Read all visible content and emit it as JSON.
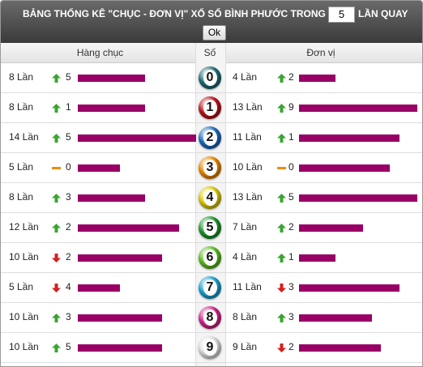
{
  "header": {
    "title": "BẢNG THỐNG KÊ \"CHỤC - ĐƠN VỊ\" XỔ SỐ BÌNH PHƯỚC TRONG",
    "input_value": "5",
    "suffix": "LẦN QUAY",
    "button": "Ok"
  },
  "table": {
    "columns": [
      "Hàng chục",
      "Số",
      "Đơn vị"
    ],
    "bar_color": "#990066",
    "rows": [
      {
        "digit": "0",
        "color": "#1f6f7a",
        "tens": {
          "value": 8,
          "label": "8 Lần",
          "trend": "up",
          "change": 5
        },
        "units": {
          "value": 4,
          "label": "4 Lần",
          "trend": "up",
          "change": 2
        }
      },
      {
        "digit": "1",
        "color": "#c0141b",
        "tens": {
          "value": 8,
          "label": "8 Lần",
          "trend": "up",
          "change": 1
        },
        "units": {
          "value": 13,
          "label": "13 Lần",
          "trend": "up",
          "change": 9
        }
      },
      {
        "digit": "2",
        "color": "#1b6fc2",
        "tens": {
          "value": 14,
          "label": "14 Lần",
          "trend": "up",
          "change": 5
        },
        "units": {
          "value": 11,
          "label": "11 Lần",
          "trend": "up",
          "change": 1
        }
      },
      {
        "digit": "3",
        "color": "#f08c00",
        "tens": {
          "value": 5,
          "label": "5 Lần",
          "trend": "flat",
          "change": 0
        },
        "units": {
          "value": 10,
          "label": "10 Lần",
          "trend": "flat",
          "change": 0
        }
      },
      {
        "digit": "4",
        "color": "#e3d000",
        "tens": {
          "value": 8,
          "label": "8 Lần",
          "trend": "up",
          "change": 3
        },
        "units": {
          "value": 13,
          "label": "13 Lần",
          "trend": "up",
          "change": 5
        }
      },
      {
        "digit": "5",
        "color": "#1f9a2e",
        "tens": {
          "value": 12,
          "label": "12 Lần",
          "trend": "up",
          "change": 2
        },
        "units": {
          "value": 7,
          "label": "7 Lần",
          "trend": "up",
          "change": 2
        }
      },
      {
        "digit": "6",
        "color": "#5cc31c",
        "tens": {
          "value": 10,
          "label": "10 Lần",
          "trend": "down",
          "change": 2
        },
        "units": {
          "value": 4,
          "label": "4 Lần",
          "trend": "up",
          "change": 1
        }
      },
      {
        "digit": "7",
        "color": "#1aa6d6",
        "tens": {
          "value": 5,
          "label": "5 Lần",
          "trend": "down",
          "change": 4
        },
        "units": {
          "value": 11,
          "label": "11 Lần",
          "trend": "down",
          "change": 3
        }
      },
      {
        "digit": "8",
        "color": "#d6268c",
        "tens": {
          "value": 10,
          "label": "10 Lần",
          "trend": "up",
          "change": 3
        },
        "units": {
          "value": 8,
          "label": "8 Lần",
          "trend": "up",
          "change": 3
        }
      },
      {
        "digit": "9",
        "color": "#e8e8e8",
        "tens": {
          "value": 10,
          "label": "10 Lần",
          "trend": "up",
          "change": 5
        },
        "units": {
          "value": 9,
          "label": "9 Lần",
          "trend": "down",
          "change": 2
        }
      }
    ]
  }
}
